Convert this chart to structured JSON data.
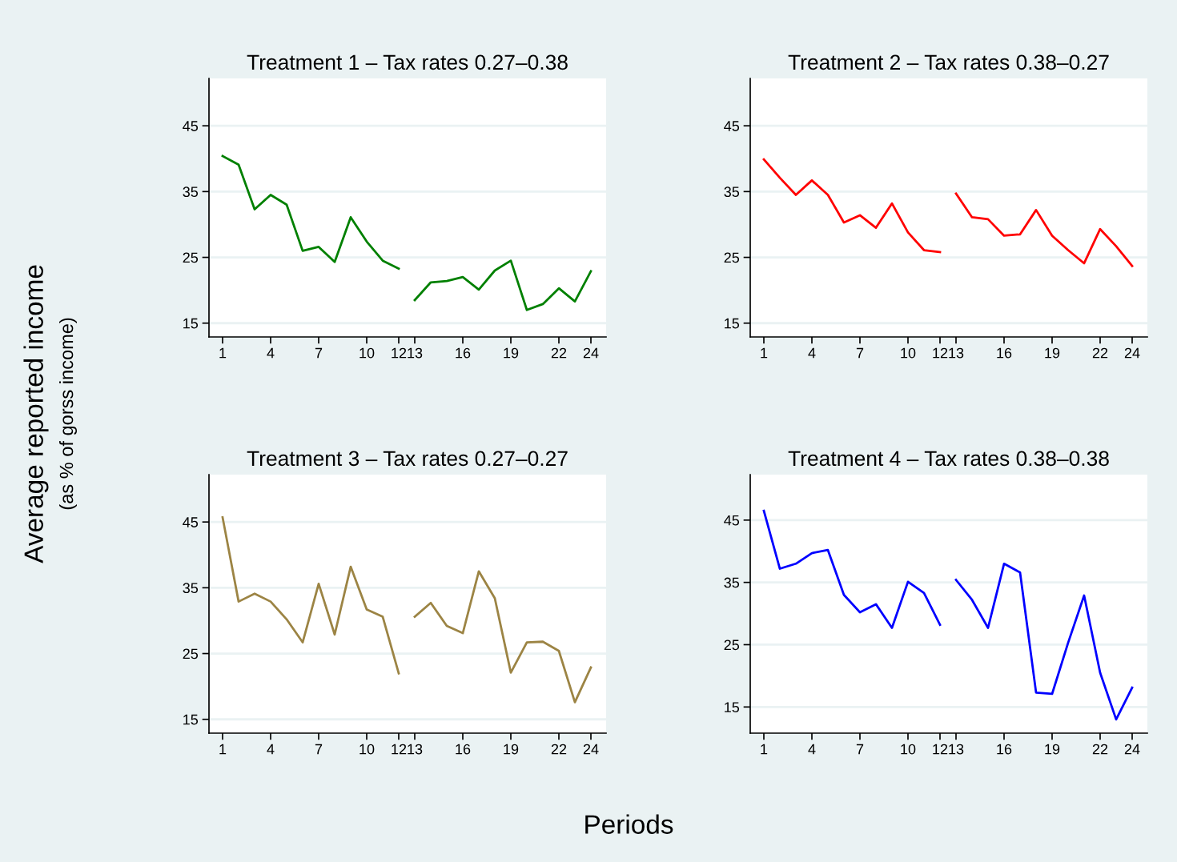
{
  "chart_data": [
    {
      "type": "line",
      "title": "Treatment 1 – Tax rates 0.27–0.38",
      "ylabel": "Average reported income\n(as % of gorss income)",
      "xlim": [
        0.15,
        24.95
      ],
      "xticks": [
        1,
        4,
        7,
        10,
        12,
        13,
        16,
        19,
        22,
        24
      ],
      "ylim": [
        12.9,
        52.2
      ],
      "yticks": [
        15,
        25,
        35,
        45
      ],
      "grid": "y",
      "legend": false,
      "series": [
        {
          "color": "#008000",
          "x": [
            1,
            2,
            3,
            4,
            5,
            6,
            7,
            8,
            9,
            10,
            11,
            12
          ],
          "values": [
            40.4,
            39.1,
            32.3,
            34.5,
            33.0,
            26.0,
            26.6,
            24.3,
            31.1,
            27.4,
            24.5,
            23.3
          ]
        },
        {
          "color": "#008000",
          "x": [
            13,
            14,
            15,
            16,
            17,
            18,
            19,
            20,
            21,
            22,
            23,
            24
          ],
          "values": [
            18.5,
            21.2,
            21.4,
            22.0,
            20.1,
            23.0,
            24.5,
            17.0,
            17.9,
            20.3,
            18.3,
            22.9
          ]
        }
      ]
    },
    {
      "type": "line",
      "title": "Treatment 2 – Tax rates 0.38–0.27",
      "xlim": [
        0.15,
        24.95
      ],
      "xticks": [
        1,
        4,
        7,
        10,
        12,
        13,
        16,
        19,
        22,
        24
      ],
      "ylim": [
        12.9,
        52.2
      ],
      "yticks": [
        15,
        25,
        35,
        45
      ],
      "grid": "y",
      "legend": false,
      "series": [
        {
          "color": "#ff0000",
          "x": [
            1,
            2,
            3,
            4,
            5,
            6,
            7,
            8,
            9,
            10,
            11,
            12
          ],
          "values": [
            39.9,
            37.1,
            34.5,
            36.7,
            34.5,
            30.3,
            31.4,
            29.5,
            33.2,
            28.8,
            26.1,
            25.8
          ]
        },
        {
          "color": "#ff0000",
          "x": [
            13,
            14,
            15,
            16,
            17,
            18,
            19,
            20,
            21,
            22,
            23,
            24
          ],
          "values": [
            34.7,
            31.1,
            30.8,
            28.3,
            28.5,
            32.2,
            28.3,
            26.1,
            24.1,
            29.3,
            26.7,
            23.7
          ]
        }
      ]
    },
    {
      "type": "line",
      "title": "Treatment 3 – Tax rates 0.27–0.27",
      "xlabel": "Periods",
      "xlim": [
        0.15,
        24.95
      ],
      "xticks": [
        1,
        4,
        7,
        10,
        12,
        13,
        16,
        19,
        22,
        24
      ],
      "ylim": [
        12.9,
        52.2
      ],
      "yticks": [
        15,
        25,
        35,
        45
      ],
      "grid": "y",
      "legend": false,
      "series": [
        {
          "color": "#9c8444",
          "x": [
            1,
            2,
            3,
            4,
            5,
            6,
            7,
            8,
            9,
            10,
            11,
            12
          ],
          "values": [
            45.7,
            32.9,
            34.1,
            32.9,
            30.2,
            26.7,
            35.6,
            27.9,
            38.2,
            31.7,
            30.6,
            22.0
          ]
        },
        {
          "color": "#9c8444",
          "x": [
            13,
            14,
            15,
            16,
            17,
            18,
            19,
            20,
            21,
            22,
            23,
            24
          ],
          "values": [
            30.6,
            32.7,
            29.2,
            28.1,
            37.5,
            33.4,
            22.1,
            26.7,
            26.8,
            25.4,
            17.6,
            22.9
          ]
        }
      ]
    },
    {
      "type": "line",
      "title": "Treatment 4 – Tax rates 0.38–0.38",
      "xlim": [
        0.15,
        24.95
      ],
      "xticks": [
        1,
        4,
        7,
        10,
        12,
        13,
        16,
        19,
        22,
        24
      ],
      "ylim": [
        10.8,
        52.3
      ],
      "yticks": [
        15,
        25,
        35,
        45
      ],
      "grid": "y",
      "legend": false,
      "series": [
        {
          "color": "#0000ff",
          "x": [
            1,
            2,
            3,
            4,
            5,
            6,
            7,
            8,
            9,
            10,
            11,
            12
          ],
          "values": [
            46.5,
            37.2,
            38.0,
            39.7,
            40.2,
            33.0,
            30.2,
            31.5,
            27.7,
            35.1,
            33.3,
            28.2
          ]
        },
        {
          "color": "#0000ff",
          "x": [
            13,
            14,
            15,
            16,
            17,
            18,
            19,
            20,
            21,
            22,
            23,
            24
          ],
          "values": [
            35.4,
            32.2,
            27.7,
            38.0,
            36.6,
            17.3,
            17.1,
            25.3,
            32.9,
            20.5,
            13.0,
            18.1
          ]
        }
      ]
    }
  ]
}
